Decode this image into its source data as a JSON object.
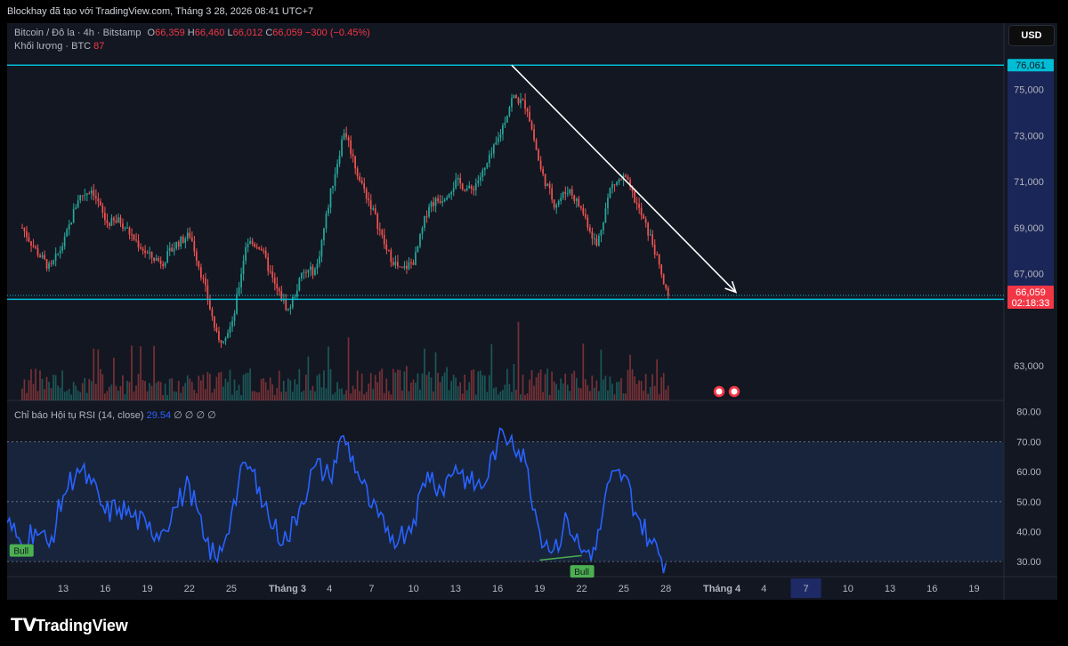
{
  "header": {
    "text": "Blockhay đã tạo với TradingView.com, Tháng 3 28, 2026 08:41 UTC+7"
  },
  "legend": {
    "symbol": "Bitcoin / Đô la · 4h · Bitstamp",
    "o_label": "O",
    "o": "66,359",
    "h_label": "H",
    "h": "66,460",
    "l_label": "L",
    "l": "66,012",
    "c_label": "C",
    "c": "66,059",
    "change": "−300 (−0.45%)",
    "volume_label": "Khối lượng · BTC",
    "volume_value": "87",
    "rsi_label": "Chỉ báo Hội tụ RSI (14, close)",
    "rsi_value": "29.54",
    "rsi_nulls": "∅ ∅ ∅ ∅"
  },
  "currency_button": "USD",
  "brand": "TradingView",
  "colors": {
    "up": "#26a69a",
    "down": "#ef5350",
    "level": "#00bcd4",
    "rsi": "#2962ff",
    "rsi_band": "#1a2a45",
    "price_tag": "#f23645"
  },
  "chart_data": [
    {
      "type": "candlestick",
      "timeframe": "4h",
      "price_axis": {
        "range": [
          61500,
          77500
        ],
        "ticks": [
          "75,000",
          "73,000",
          "71,000",
          "69,000",
          "67,000",
          "63,000"
        ]
      },
      "time_axis": {
        "ticks": [
          "13",
          "16",
          "19",
          "22",
          "25",
          "Tháng 3",
          "4",
          "7",
          "10",
          "13",
          "16",
          "19",
          "22",
          "25",
          "28",
          "Tháng 4",
          "4",
          "7",
          "10",
          "13",
          "16",
          "19"
        ]
      },
      "levels": [
        {
          "price": 76061,
          "label": "76,061"
        },
        {
          "price": 65891,
          "label": "65,891"
        }
      ],
      "last_price": {
        "price": 66059,
        "label": "66,059",
        "countdown": "02:18:33"
      },
      "trend_arrow": {
        "from": {
          "date": "2026-03-17",
          "price": 76061
        },
        "to": {
          "date": "2026-04-02",
          "price": 66200
        }
      },
      "close_path": [
        [
          "2026-02-10",
          69000
        ],
        [
          "2026-02-11",
          68000
        ],
        [
          "2026-02-12",
          67200
        ],
        [
          "2026-02-13",
          68400
        ],
        [
          "2026-02-14",
          70300
        ],
        [
          "2026-02-15",
          70700
        ],
        [
          "2026-02-16",
          69200
        ],
        [
          "2026-02-17",
          69300
        ],
        [
          "2026-02-18",
          68500
        ],
        [
          "2026-02-19",
          67800
        ],
        [
          "2026-02-20",
          67500
        ],
        [
          "2026-02-21",
          68300
        ],
        [
          "2026-02-22",
          68700
        ],
        [
          "2026-02-23",
          66500
        ],
        [
          "2026-02-24",
          64000
        ],
        [
          "2026-02-25",
          64800
        ],
        [
          "2026-02-26",
          68400
        ],
        [
          "2026-02-27",
          68200
        ],
        [
          "2026-02-28",
          66500
        ],
        [
          "2026-03-01",
          65400
        ],
        [
          "2026-03-02",
          67000
        ],
        [
          "2026-03-03",
          67200
        ],
        [
          "2026-03-04",
          70500
        ],
        [
          "2026-03-05",
          73300
        ],
        [
          "2026-03-06",
          71200
        ],
        [
          "2026-03-07",
          69800
        ],
        [
          "2026-03-08",
          68000
        ],
        [
          "2026-03-09",
          67100
        ],
        [
          "2026-03-10",
          67600
        ],
        [
          "2026-03-11",
          70000
        ],
        [
          "2026-03-12",
          70300
        ],
        [
          "2026-03-13",
          71000
        ],
        [
          "2026-03-14",
          70600
        ],
        [
          "2026-03-15",
          71500
        ],
        [
          "2026-03-16",
          72900
        ],
        [
          "2026-03-17",
          74700
        ],
        [
          "2026-03-18",
          74300
        ],
        [
          "2026-03-19",
          71500
        ],
        [
          "2026-03-20",
          70000
        ],
        [
          "2026-03-21",
          70700
        ],
        [
          "2026-03-22",
          69700
        ],
        [
          "2026-03-23",
          68200
        ],
        [
          "2026-03-24",
          70800
        ],
        [
          "2026-03-25",
          71200
        ],
        [
          "2026-03-26",
          69800
        ],
        [
          "2026-03-27",
          68300
        ],
        [
          "2026-03-28",
          66059
        ]
      ]
    },
    {
      "type": "line",
      "name": "Chỉ báo Hội tụ RSI (14, close)",
      "y_axis": {
        "range": [
          25,
          82
        ],
        "ticks": [
          "80.00",
          "70.00",
          "60.00",
          "50.00",
          "40.00",
          "30.00"
        ]
      },
      "band": [
        30,
        70
      ],
      "midline": 50,
      "divergence_labels": [
        {
          "text": "Bull",
          "date": "2026-02-10",
          "value": 37
        },
        {
          "text": "Bull",
          "date": "2026-03-22",
          "value": 30
        }
      ],
      "points": [
        [
          "2026-02-09",
          43
        ],
        [
          "2026-02-10",
          36
        ],
        [
          "2026-02-11",
          41
        ],
        [
          "2026-02-12",
          35
        ],
        [
          "2026-02-13",
          52
        ],
        [
          "2026-02-14",
          61
        ],
        [
          "2026-02-15",
          56
        ],
        [
          "2026-02-16",
          46
        ],
        [
          "2026-02-17",
          48
        ],
        [
          "2026-02-18",
          45
        ],
        [
          "2026-02-19",
          41
        ],
        [
          "2026-02-20",
          40
        ],
        [
          "2026-02-21",
          48
        ],
        [
          "2026-02-22",
          56
        ],
        [
          "2026-02-23",
          38
        ],
        [
          "2026-02-24",
          30
        ],
        [
          "2026-02-25",
          46
        ],
        [
          "2026-02-26",
          63
        ],
        [
          "2026-02-27",
          55
        ],
        [
          "2026-02-28",
          41
        ],
        [
          "2026-03-01",
          37
        ],
        [
          "2026-03-02",
          50
        ],
        [
          "2026-03-03",
          62
        ],
        [
          "2026-03-04",
          58
        ],
        [
          "2026-03-05",
          72
        ],
        [
          "2026-03-06",
          60
        ],
        [
          "2026-03-07",
          48
        ],
        [
          "2026-03-08",
          40
        ],
        [
          "2026-03-09",
          38
        ],
        [
          "2026-03-10",
          44
        ],
        [
          "2026-03-11",
          60
        ],
        [
          "2026-03-12",
          54
        ],
        [
          "2026-03-13",
          62
        ],
        [
          "2026-03-14",
          56
        ],
        [
          "2026-03-15",
          55
        ],
        [
          "2026-03-16",
          70
        ],
        [
          "2026-03-17",
          72
        ],
        [
          "2026-03-18",
          63
        ],
        [
          "2026-03-19",
          40
        ],
        [
          "2026-03-20",
          34
        ],
        [
          "2026-03-21",
          44
        ],
        [
          "2026-03-22",
          33
        ],
        [
          "2026-03-23",
          34
        ],
        [
          "2026-03-24",
          57
        ],
        [
          "2026-03-25",
          59
        ],
        [
          "2026-03-26",
          45
        ],
        [
          "2026-03-27",
          36
        ],
        [
          "2026-03-28",
          29.54
        ]
      ]
    }
  ]
}
